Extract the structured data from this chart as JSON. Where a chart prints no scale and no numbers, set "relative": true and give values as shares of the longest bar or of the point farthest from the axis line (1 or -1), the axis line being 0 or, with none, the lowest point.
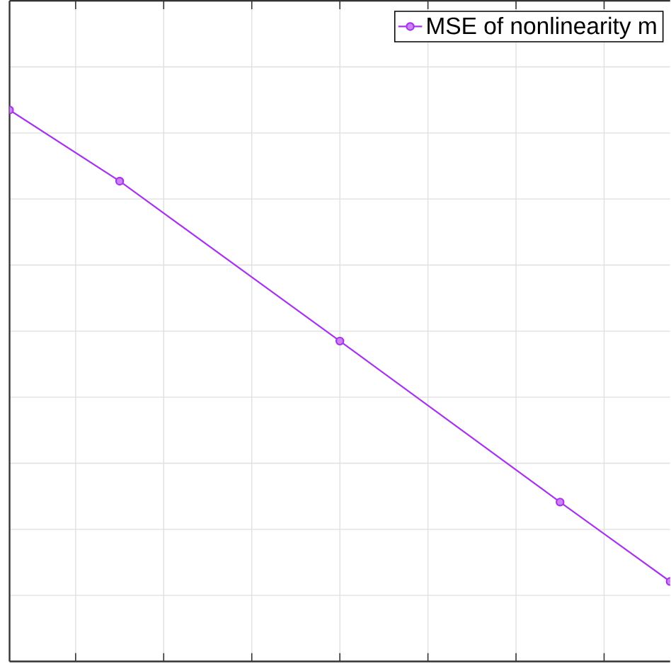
{
  "chart_data": {
    "type": "line",
    "relative": true,
    "categories": [
      null,
      null,
      null,
      null,
      null,
      null,
      null
    ],
    "series": [
      {
        "name": "MSE of nonlinearity m",
        "color": "#a832f0",
        "values": [
          1,
          0.871,
          null,
          0.581,
          null,
          0.289,
          0.145
        ]
      }
    ],
    "grid": true,
    "legend": "top right",
    "marker": "circle",
    "line_style": "solid"
  }
}
